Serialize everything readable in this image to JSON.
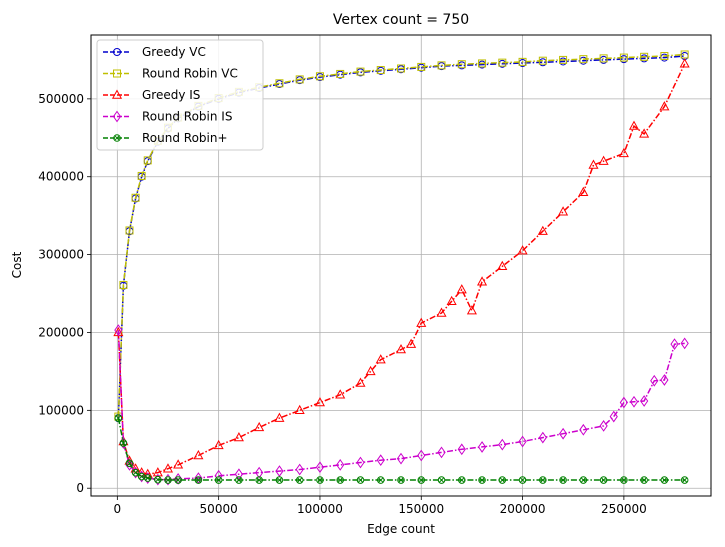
{
  "chart_data": {
    "type": "line",
    "title": "Vertex count = 750",
    "xlabel": "Edge count",
    "ylabel": "Cost",
    "xlim": [
      -13000,
      293000
    ],
    "ylim": [
      -10000,
      582000
    ],
    "xticks": [
      0,
      50000,
      100000,
      150000,
      200000,
      250000
    ],
    "yticks": [
      0,
      100000,
      200000,
      300000,
      400000,
      500000
    ],
    "xtick_labels": [
      "0",
      "50000",
      "100000",
      "150000",
      "200000",
      "250000"
    ],
    "ytick_labels": [
      "0",
      "100000",
      "200000",
      "300000",
      "400000",
      "500000"
    ],
    "grid": true,
    "legend_position": "top-left",
    "series": [
      {
        "name": "Greedy VC",
        "color": "#0000cc",
        "marker": "circle",
        "x": [
          500,
          3000,
          6000,
          9000,
          12000,
          15000,
          20000,
          25000,
          30000,
          40000,
          50000,
          60000,
          70000,
          80000,
          90000,
          100000,
          110000,
          120000,
          130000,
          140000,
          150000,
          160000,
          170000,
          180000,
          190000,
          200000,
          210000,
          220000,
          230000,
          240000,
          250000,
          260000,
          270000,
          280000
        ],
        "y": [
          90000,
          260000,
          330000,
          372000,
          400000,
          420000,
          445000,
          462000,
          475000,
          490000,
          500000,
          508000,
          514000,
          519000,
          524000,
          528000,
          531000,
          534000,
          536000,
          538000,
          540000,
          542000,
          543000,
          544000,
          545000,
          546000,
          547000,
          548000,
          549000,
          550000,
          551000,
          552000,
          553000,
          555000
        ]
      },
      {
        "name": "Round Robin VC",
        "color": "#bfbf00",
        "marker": "square",
        "x": [
          500,
          3000,
          6000,
          9000,
          12000,
          15000,
          20000,
          25000,
          30000,
          40000,
          50000,
          60000,
          70000,
          80000,
          90000,
          100000,
          110000,
          120000,
          130000,
          140000,
          150000,
          160000,
          170000,
          180000,
          190000,
          200000,
          210000,
          220000,
          230000,
          240000,
          250000,
          260000,
          270000,
          280000
        ],
        "y": [
          92000,
          261000,
          331000,
          373000,
          401000,
          421000,
          446000,
          463000,
          476000,
          491000,
          501000,
          509000,
          515000,
          520000,
          525000,
          529000,
          532000,
          535000,
          537000,
          539000,
          541000,
          543000,
          544500,
          545500,
          546500,
          547500,
          549000,
          550000,
          551000,
          552000,
          553000,
          554000,
          555000,
          557000
        ]
      },
      {
        "name": "Greedy IS",
        "color": "#ff0000",
        "marker": "triangle",
        "x": [
          500,
          3000,
          6000,
          9000,
          12000,
          15000,
          20000,
          25000,
          30000,
          40000,
          50000,
          60000,
          70000,
          80000,
          90000,
          100000,
          110000,
          120000,
          125000,
          130000,
          140000,
          145000,
          150000,
          160000,
          165000,
          170000,
          175000,
          180000,
          190000,
          200000,
          210000,
          220000,
          230000,
          235000,
          240000,
          250000,
          255000,
          260000,
          270000,
          280000
        ],
        "y": [
          200000,
          60000,
          35000,
          25000,
          20000,
          18000,
          20000,
          25000,
          30000,
          42000,
          55000,
          65000,
          78000,
          90000,
          100000,
          110000,
          120000,
          135000,
          150000,
          165000,
          178000,
          185000,
          212000,
          225000,
          240000,
          255000,
          228000,
          265000,
          285000,
          305000,
          330000,
          355000,
          380000,
          415000,
          420000,
          430000,
          465000,
          455000,
          490000,
          545000
        ]
      },
      {
        "name": "Round Robin IS",
        "color": "#cc00cc",
        "marker": "diamond",
        "x": [
          500,
          3000,
          6000,
          9000,
          12000,
          15000,
          20000,
          25000,
          30000,
          40000,
          50000,
          60000,
          70000,
          80000,
          90000,
          100000,
          110000,
          120000,
          130000,
          140000,
          150000,
          160000,
          170000,
          180000,
          190000,
          200000,
          210000,
          220000,
          230000,
          240000,
          245000,
          250000,
          255000,
          260000,
          265000,
          270000,
          275000,
          280000
        ],
        "y": [
          203000,
          58000,
          30000,
          20000,
          15000,
          13000,
          11000,
          11000,
          12000,
          13000,
          16000,
          18000,
          20000,
          22000,
          24000,
          27000,
          30000,
          33000,
          36000,
          38000,
          42000,
          46000,
          50000,
          53000,
          56000,
          60000,
          65000,
          70000,
          75000,
          80000,
          92000,
          110000,
          111000,
          112000,
          138000,
          139000,
          185000,
          186000
        ]
      },
      {
        "name": "Round Robin+",
        "color": "#008000",
        "marker": "cross",
        "x": [
          500,
          3000,
          6000,
          9000,
          12000,
          15000,
          20000,
          25000,
          30000,
          40000,
          50000,
          60000,
          70000,
          80000,
          90000,
          100000,
          110000,
          120000,
          130000,
          140000,
          150000,
          160000,
          170000,
          180000,
          190000,
          200000,
          210000,
          220000,
          230000,
          240000,
          250000,
          260000,
          270000,
          280000
        ],
        "y": [
          90000,
          58000,
          32000,
          20000,
          15000,
          13000,
          11000,
          10500,
          10500,
          10500,
          10500,
          10500,
          10500,
          10500,
          10500,
          10500,
          10500,
          10500,
          10500,
          10500,
          10500,
          10500,
          10500,
          10500,
          10500,
          10500,
          10500,
          10500,
          10500,
          10500,
          10500,
          10500,
          10500,
          10500
        ]
      }
    ]
  }
}
